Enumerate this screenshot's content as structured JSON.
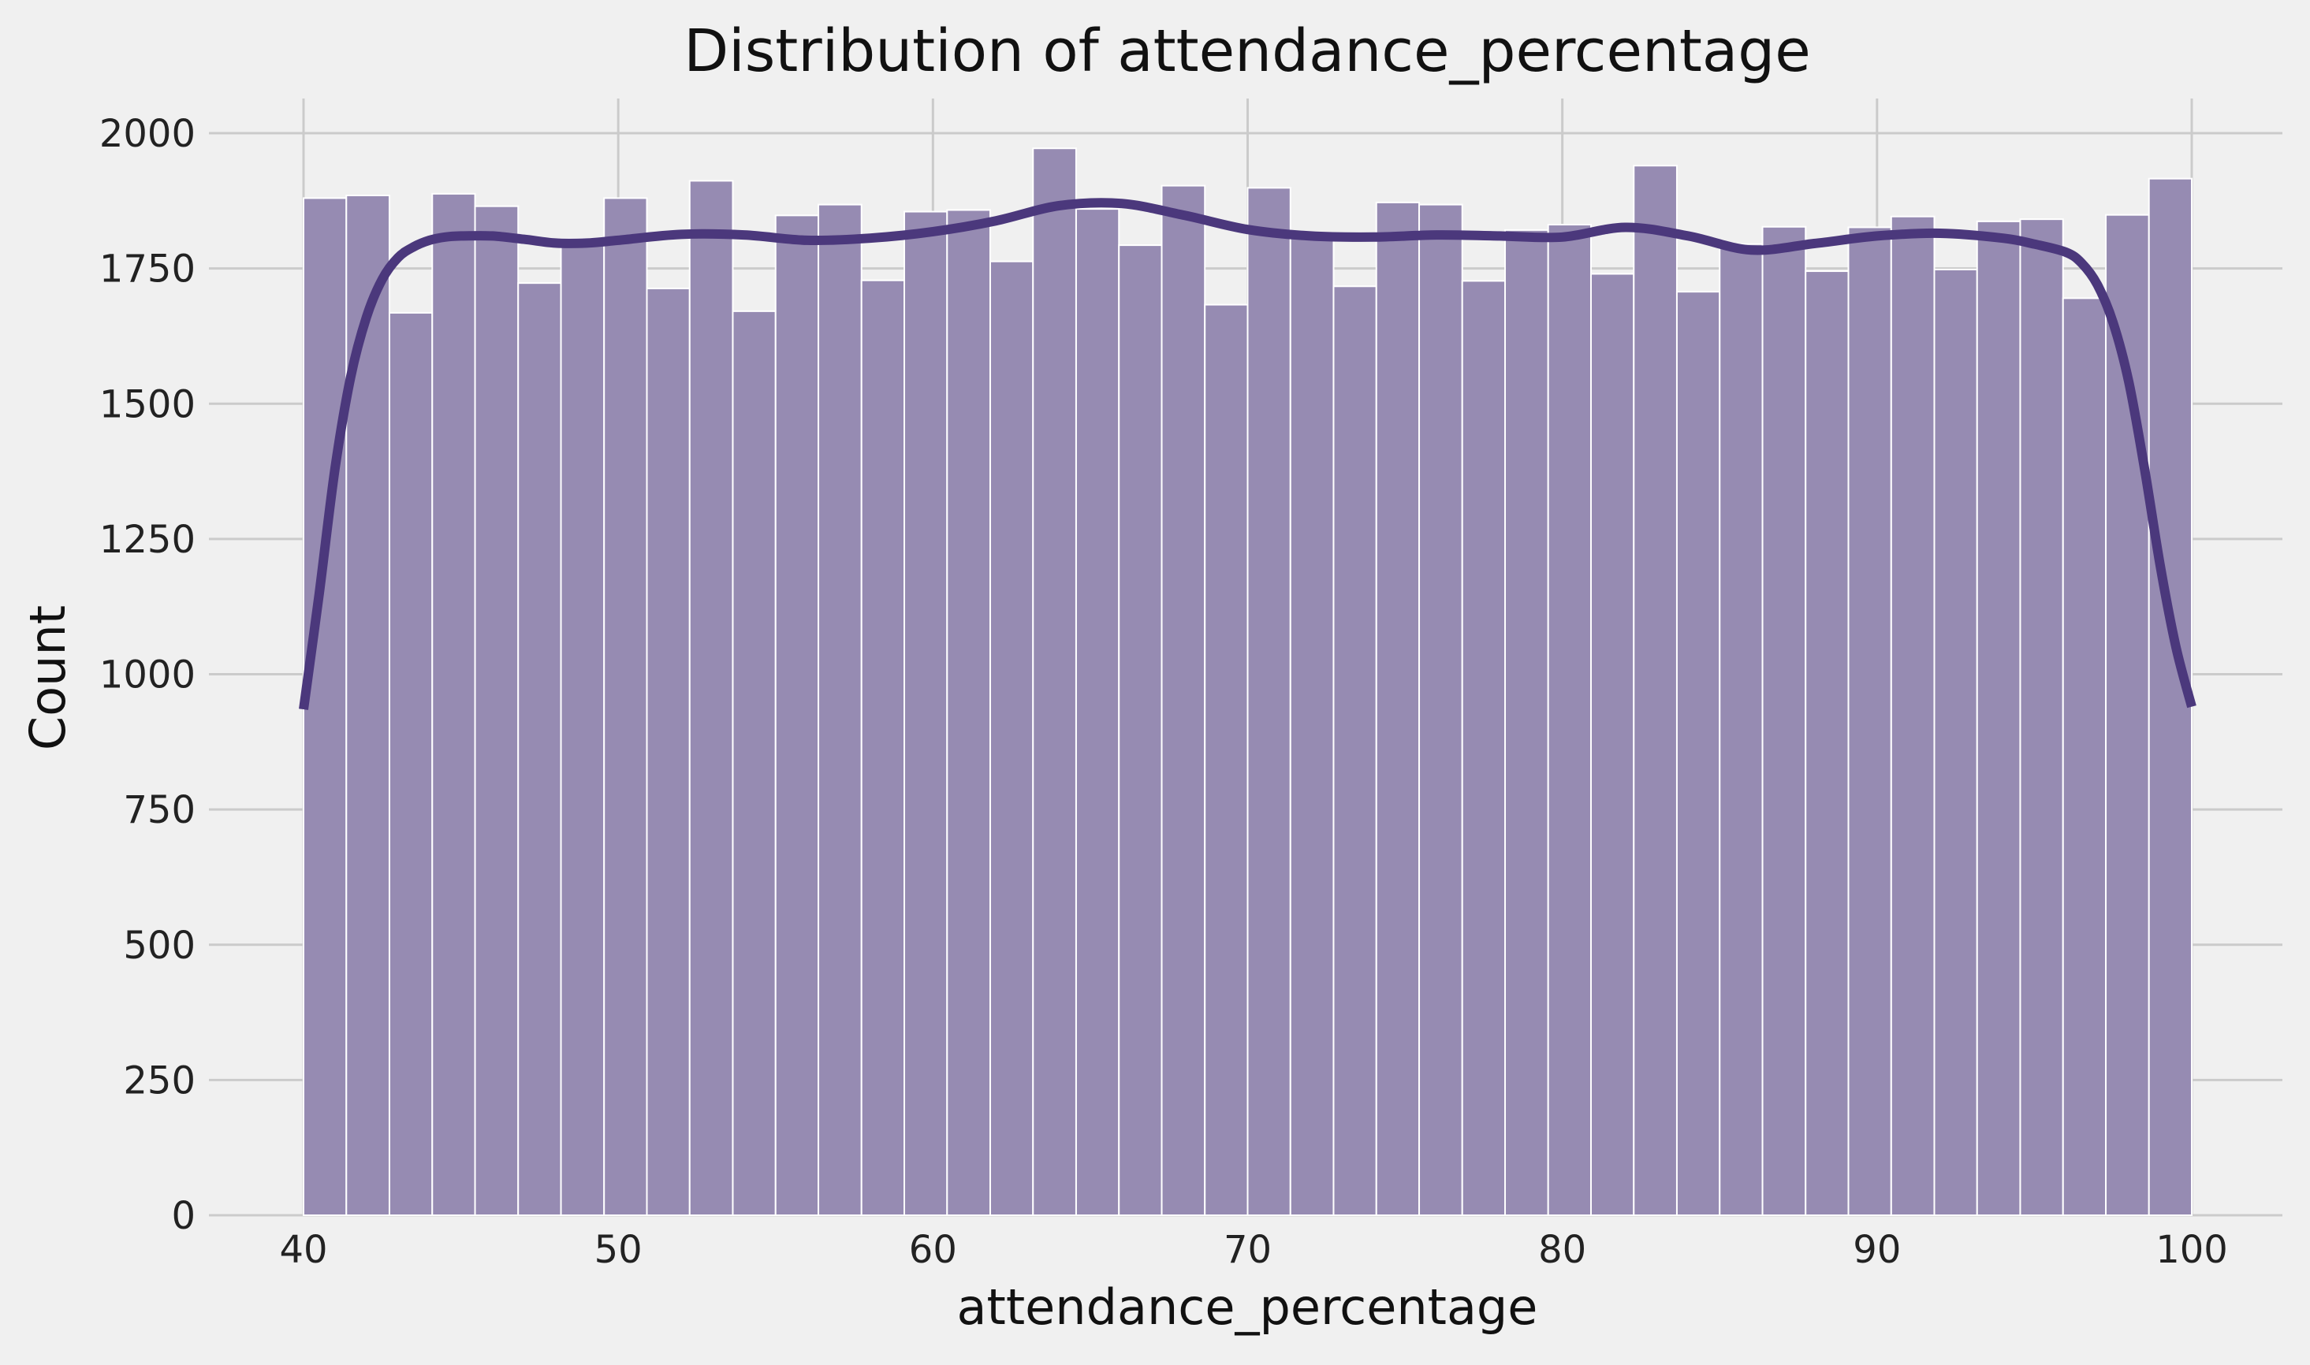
{
  "chart_data": {
    "type": "bar",
    "title": "Distribution of attendance_percentage",
    "xlabel": "attendance_percentage",
    "ylabel": "Count",
    "xlim": [
      40,
      100
    ],
    "ylim": [
      0,
      2000
    ],
    "xticks": [
      40,
      50,
      60,
      70,
      80,
      90,
      100
    ],
    "yticks": [
      0,
      250,
      500,
      750,
      1000,
      1250,
      1500,
      1750,
      2000
    ],
    "grid": true,
    "bin_edges": [
      40.0,
      41.36,
      42.73,
      44.09,
      45.45,
      46.82,
      48.18,
      49.55,
      50.91,
      52.27,
      53.64,
      55.0,
      56.36,
      57.73,
      59.09,
      60.45,
      61.82,
      63.18,
      64.55,
      65.91,
      67.27,
      68.64,
      70.0,
      71.36,
      72.73,
      74.09,
      75.45,
      76.82,
      78.18,
      79.55,
      80.91,
      82.27,
      83.64,
      85.0,
      86.36,
      87.73,
      89.09,
      90.45,
      91.82,
      93.18,
      94.55,
      95.91,
      97.27,
      98.64,
      100.0
    ],
    "values": [
      1880,
      1885,
      1668,
      1888,
      1865,
      1723,
      1805,
      1880,
      1713,
      1912,
      1671,
      1848,
      1868,
      1728,
      1855,
      1858,
      1763,
      1972,
      1860,
      1793,
      1903,
      1683,
      1899,
      1813,
      1717,
      1872,
      1868,
      1727,
      1821,
      1831,
      1740,
      1940,
      1707,
      1795,
      1827,
      1745,
      1826,
      1846,
      1748,
      1837,
      1841,
      1695,
      1849,
      1916
    ],
    "kde": {
      "color": "#4b387c",
      "x": [
        40,
        40.5,
        41,
        41.5,
        42,
        42.5,
        43,
        43.5,
        44,
        44.5,
        45,
        46,
        47,
        48,
        49,
        50,
        52,
        54,
        56,
        58,
        60,
        62,
        64,
        66,
        68,
        70,
        72,
        74,
        76,
        78,
        80,
        82,
        84,
        86,
        88,
        90,
        92,
        94,
        95,
        96,
        96.5,
        97,
        97.5,
        98,
        98.5,
        99,
        99.5,
        100
      ],
      "y": [
        935,
        1150,
        1380,
        1550,
        1660,
        1730,
        1770,
        1790,
        1802,
        1808,
        1810,
        1810,
        1804,
        1797,
        1797,
        1802,
        1813,
        1812,
        1802,
        1806,
        1818,
        1838,
        1866,
        1870,
        1848,
        1822,
        1810,
        1808,
        1812,
        1810,
        1808,
        1826,
        1810,
        1784,
        1796,
        1810,
        1815,
        1806,
        1795,
        1780,
        1760,
        1720,
        1650,
        1540,
        1380,
        1200,
        1050,
        940
      ]
    },
    "bar_color": "#968bb2",
    "background": "#f0f0f0"
  }
}
